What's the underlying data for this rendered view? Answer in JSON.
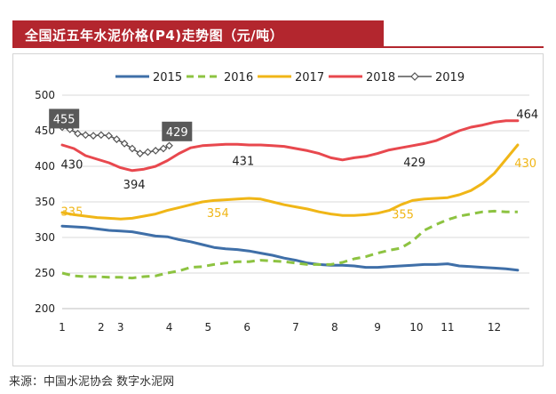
{
  "title": "全国近五年水泥价格(P4)走势图（元/吨）",
  "source": "来源：中国水泥协会  数字水泥网",
  "colors": {
    "title_bg": "#b3262e",
    "s2015": "#3f6fa8",
    "s2016": "#8dc341",
    "s2017": "#f0b617",
    "s2018": "#e8484e",
    "s2019": "#555555",
    "grid": "#d9d9d9"
  },
  "chart_data": {
    "type": "line",
    "title": "全国近五年水泥价格(P4)走势图（元/吨）",
    "xlabel": "",
    "ylabel": "",
    "ylim": [
      200,
      500
    ],
    "xlim": [
      1,
      13
    ],
    "y_ticks": [
      "200",
      "250",
      "300",
      "350",
      "400",
      "450",
      "500"
    ],
    "x_ticks": [
      {
        "label": "1",
        "x": 1
      },
      {
        "label": "2",
        "x": 2
      },
      {
        "label": "3",
        "x": 2.5
      },
      {
        "label": "4",
        "x": 3.75
      },
      {
        "label": "5",
        "x": 4.75
      },
      {
        "label": "6",
        "x": 5.75
      },
      {
        "label": "7",
        "x": 7
      },
      {
        "label": "8",
        "x": 8
      },
      {
        "label": "9",
        "x": 9.1
      },
      {
        "label": "10",
        "x": 10.1
      },
      {
        "label": "11",
        "x": 10.9
      },
      {
        "label": "12",
        "x": 12.1
      }
    ],
    "legend_position": "top",
    "grid": "horizontal",
    "series": [
      {
        "name": "2015",
        "color": "#3f6fa8",
        "style": "solid",
        "x": [
          1,
          1.3,
          1.6,
          1.9,
          2.2,
          2.5,
          2.8,
          3.1,
          3.4,
          3.7,
          4.0,
          4.3,
          4.6,
          4.9,
          5.2,
          5.5,
          5.8,
          6.1,
          6.4,
          6.7,
          7.0,
          7.3,
          7.6,
          7.9,
          8.2,
          8.5,
          8.8,
          9.1,
          9.4,
          9.7,
          10.0,
          10.3,
          10.6,
          10.9,
          11.2,
          11.5,
          11.8,
          12.1,
          12.4,
          12.7
        ],
        "y": [
          316,
          315,
          314,
          312,
          310,
          309,
          308,
          305,
          302,
          301,
          297,
          294,
          290,
          286,
          284,
          283,
          281,
          278,
          275,
          271,
          268,
          264,
          262,
          261,
          261,
          260,
          258,
          258,
          259,
          260,
          261,
          262,
          262,
          263,
          260,
          259,
          258,
          257,
          256,
          254
        ]
      },
      {
        "name": "2016",
        "color": "#8dc341",
        "style": "dashed",
        "x": [
          1,
          1.3,
          1.6,
          1.9,
          2.2,
          2.5,
          2.8,
          3.1,
          3.4,
          3.7,
          4.0,
          4.3,
          4.6,
          4.9,
          5.2,
          5.5,
          5.8,
          6.1,
          6.4,
          6.7,
          7.0,
          7.3,
          7.6,
          7.9,
          8.2,
          8.5,
          8.8,
          9.1,
          9.4,
          9.7,
          10.0,
          10.3,
          10.6,
          10.9,
          11.2,
          11.5,
          11.8,
          12.1,
          12.4,
          12.7
        ],
        "y": [
          250,
          246,
          245,
          245,
          244,
          244,
          243,
          245,
          246,
          250,
          253,
          258,
          259,
          262,
          264,
          266,
          266,
          268,
          267,
          266,
          264,
          262,
          262,
          262,
          265,
          270,
          273,
          278,
          282,
          285,
          295,
          310,
          318,
          325,
          330,
          333,
          336,
          337,
          336,
          336
        ]
      },
      {
        "name": "2017",
        "color": "#f0b617",
        "style": "solid",
        "x": [
          1,
          1.3,
          1.6,
          1.9,
          2.2,
          2.5,
          2.8,
          3.1,
          3.4,
          3.7,
          4.0,
          4.3,
          4.6,
          4.9,
          5.2,
          5.5,
          5.8,
          6.1,
          6.4,
          6.7,
          7.0,
          7.3,
          7.6,
          7.9,
          8.2,
          8.5,
          8.8,
          9.1,
          9.4,
          9.7,
          10.0,
          10.3,
          10.6,
          10.9,
          11.2,
          11.5,
          11.8,
          12.1,
          12.4,
          12.7
        ],
        "y": [
          335,
          332,
          330,
          328,
          327,
          326,
          327,
          330,
          333,
          338,
          342,
          346,
          350,
          352,
          353,
          354,
          355,
          354,
          350,
          346,
          343,
          340,
          336,
          333,
          331,
          331,
          332,
          334,
          338,
          346,
          352,
          354,
          355,
          356,
          360,
          366,
          376,
          390,
          410,
          430
        ]
      },
      {
        "name": "2018",
        "color": "#e8484e",
        "style": "solid",
        "x": [
          1,
          1.3,
          1.6,
          1.9,
          2.2,
          2.5,
          2.8,
          3.1,
          3.4,
          3.7,
          4.0,
          4.3,
          4.6,
          4.9,
          5.2,
          5.5,
          5.8,
          6.1,
          6.4,
          6.7,
          7.0,
          7.3,
          7.6,
          7.9,
          8.2,
          8.5,
          8.8,
          9.1,
          9.4,
          9.7,
          10.0,
          10.3,
          10.6,
          10.9,
          11.2,
          11.5,
          11.8,
          12.1,
          12.4,
          12.7
        ],
        "y": [
          430,
          425,
          415,
          410,
          405,
          398,
          394,
          396,
          400,
          408,
          418,
          426,
          429,
          430,
          431,
          431,
          430,
          430,
          429,
          428,
          425,
          422,
          418,
          412,
          409,
          412,
          414,
          418,
          423,
          426,
          429,
          432,
          436,
          443,
          450,
          455,
          458,
          462,
          464,
          464
        ]
      },
      {
        "name": "2019",
        "color": "#555555",
        "style": "solid-marker",
        "x": [
          1,
          1.2,
          1.4,
          1.6,
          1.8,
          2.0,
          2.2,
          2.4,
          2.6,
          2.8,
          3.0,
          3.2,
          3.4,
          3.6,
          3.75
        ],
        "y": [
          455,
          452,
          446,
          444,
          443,
          444,
          443,
          438,
          432,
          425,
          418,
          420,
          422,
          425,
          429
        ]
      }
    ],
    "annotations": [
      {
        "text": "455",
        "x": 1.05,
        "y": 467,
        "boxed": true,
        "color": "#ffffff"
      },
      {
        "text": "429",
        "x": 3.95,
        "y": 449,
        "boxed": true,
        "color": "#ffffff"
      },
      {
        "text": "430",
        "x": 1.25,
        "y": 403,
        "boxed": false,
        "color": "#222222"
      },
      {
        "text": "394",
        "x": 2.85,
        "y": 375,
        "boxed": false,
        "color": "#222222"
      },
      {
        "text": "431",
        "x": 5.65,
        "y": 408,
        "boxed": false,
        "color": "#222222"
      },
      {
        "text": "429",
        "x": 10.05,
        "y": 406,
        "boxed": false,
        "color": "#222222"
      },
      {
        "text": "464",
        "x": 12.95,
        "y": 474,
        "boxed": false,
        "color": "#222222"
      },
      {
        "text": "335",
        "x": 1.25,
        "y": 337,
        "boxed": false,
        "color": "#f0b617"
      },
      {
        "text": "354",
        "x": 5.0,
        "y": 335,
        "boxed": false,
        "color": "#f0b617"
      },
      {
        "text": "355",
        "x": 9.75,
        "y": 333,
        "boxed": false,
        "color": "#f0b617"
      },
      {
        "text": "430",
        "x": 12.9,
        "y": 405,
        "boxed": false,
        "color": "#f0b617"
      }
    ]
  }
}
